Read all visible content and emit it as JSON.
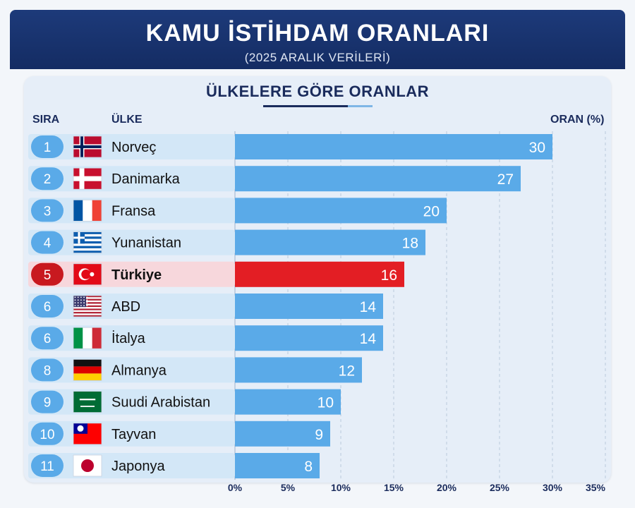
{
  "header": {
    "title": "KAMU İSTİHDAM ORANLARI",
    "subtitle": "(2025 ARALIK VERİLERİ)"
  },
  "section": {
    "title": "ÜLKELERE GÖRE ORANLAR"
  },
  "columns": {
    "rank": "SIRA",
    "country": "ÜLKE",
    "rate": "ORAN (%)"
  },
  "colors": {
    "bar": "#5aaae8",
    "highlight_bar": "#e31e24",
    "highlight_row": "#f7d7dc",
    "rank_badge": "#5aaae8",
    "highlight_badge": "#c8191f",
    "row_band": "#d3e7f7"
  },
  "chart_data": {
    "type": "bar",
    "orientation": "horizontal",
    "categories": [
      "Norveç",
      "Danimarka",
      "Fransa",
      "Yunanistan",
      "Türkiye",
      "ABD",
      "İtalya",
      "Almanya",
      "Suudi Arabistan",
      "Tayvan",
      "Japonya"
    ],
    "ranks": [
      "1",
      "2",
      "3",
      "4",
      "5",
      "6",
      "6",
      "8",
      "9",
      "10",
      "11"
    ],
    "flag_icons": [
      "norway-flag-icon",
      "denmark-flag-icon",
      "france-flag-icon",
      "greece-flag-icon",
      "turkey-flag-icon",
      "usa-flag-icon",
      "italy-flag-icon",
      "germany-flag-icon",
      "saudi-arabia-flag-icon",
      "taiwan-flag-icon",
      "japan-flag-icon"
    ],
    "values": [
      30,
      27,
      20,
      18,
      16,
      14,
      14,
      12,
      10,
      9,
      8
    ],
    "highlight": "Türkiye",
    "xlim": [
      0,
      35
    ],
    "xticks": [
      0,
      5,
      10,
      15,
      20,
      25,
      30,
      35
    ],
    "xtick_labels": [
      "0%",
      "5%",
      "10%",
      "15%",
      "20%",
      "25%",
      "30%",
      "35%"
    ],
    "grid": "vertical-dashed"
  }
}
